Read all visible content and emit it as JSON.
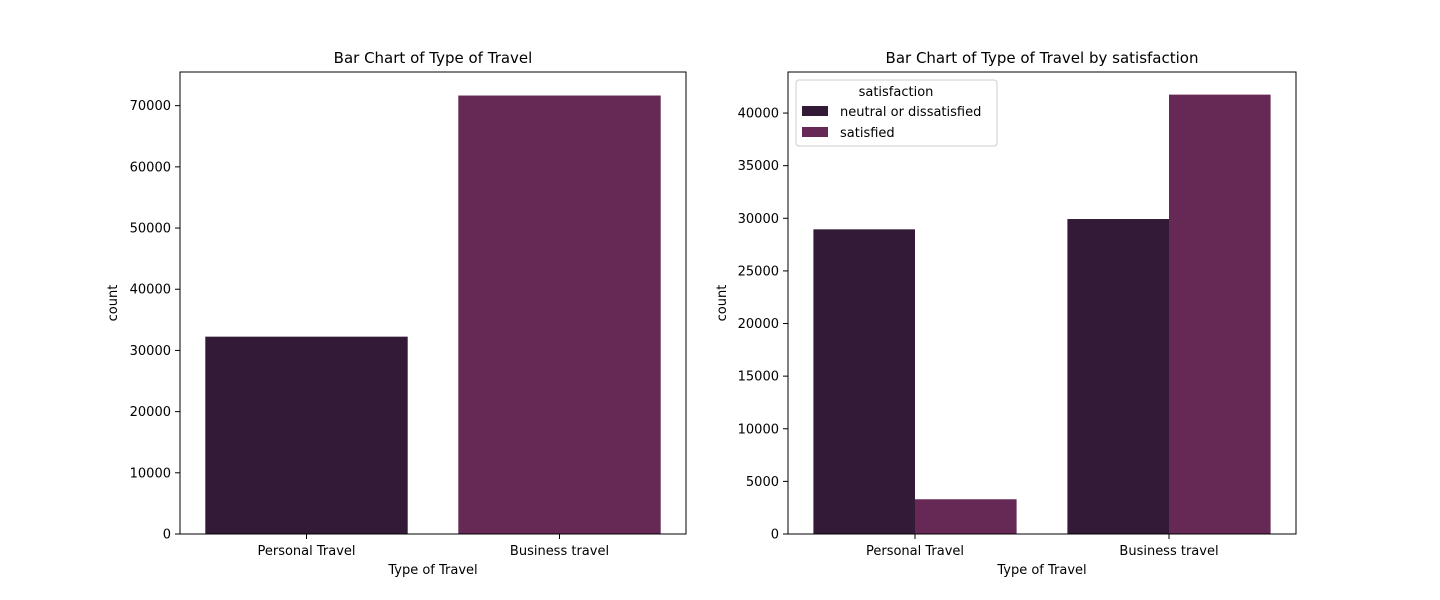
{
  "colors": {
    "series_0": "#331b37",
    "series_1": "#662854"
  },
  "chart_data": [
    {
      "type": "bar",
      "title": "Bar Chart of Type of Travel",
      "xlabel": "Type of Travel",
      "ylabel": "count",
      "categories": [
        "Personal Travel",
        "Business travel"
      ],
      "values": [
        32249,
        71655
      ],
      "ylim": [
        0,
        75500
      ],
      "yticks": [
        0,
        10000,
        20000,
        30000,
        40000,
        50000,
        60000,
        70000
      ],
      "grid": false
    },
    {
      "type": "bar",
      "title": "Bar Chart of Type of Travel by satisfaction",
      "xlabel": "Type of Travel",
      "ylabel": "count",
      "categories": [
        "Personal Travel",
        "Business travel"
      ],
      "series": [
        {
          "name": "neutral or dissatisfied",
          "values": [
            28950,
            29930
          ]
        },
        {
          "name": "satisfied",
          "values": [
            3300,
            41750
          ]
        }
      ],
      "ylim": [
        0,
        43900
      ],
      "yticks": [
        0,
        5000,
        10000,
        15000,
        20000,
        25000,
        30000,
        35000,
        40000
      ],
      "legend": {
        "title": "satisfaction",
        "position": "top-left"
      },
      "grid": false
    }
  ]
}
